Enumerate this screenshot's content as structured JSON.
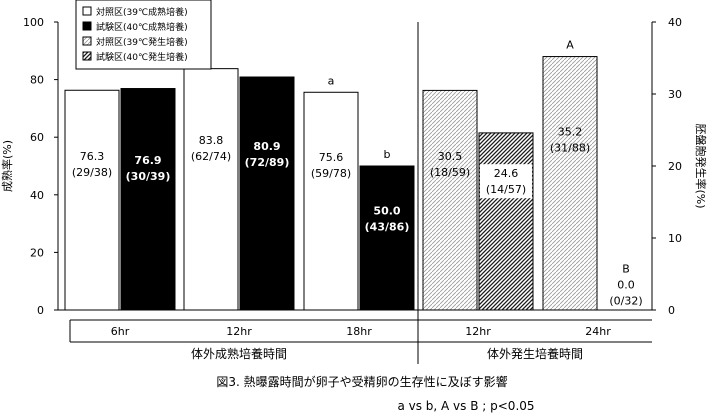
{
  "chart_data": {
    "type": "bar",
    "left_axis": {
      "label": "成熟率(%)",
      "ticks": [
        "0",
        "20",
        "40",
        "60",
        "80",
        "100"
      ],
      "ylim": [
        0,
        100
      ]
    },
    "right_axis": {
      "label": "胚盤胞発生率(%)",
      "ticks": [
        "0",
        "10",
        "20",
        "30",
        "40"
      ],
      "ylim": [
        0,
        40
      ]
    },
    "sections": [
      {
        "label": "体外成熟培養時間",
        "groups": [
          "6hr",
          "12hr",
          "18hr"
        ]
      },
      {
        "label": "体外発生培養時間",
        "groups": [
          "12hr",
          "24hr"
        ]
      }
    ],
    "legend": [
      {
        "name": "対照区(39℃成熟培養)",
        "pattern": "white"
      },
      {
        "name": "試験区(40℃成熟培養)",
        "pattern": "black"
      },
      {
        "name": "対照区(39℃発生培養)",
        "pattern": "dots"
      },
      {
        "name": "試験区(40℃発生培養)",
        "pattern": "hatch"
      }
    ],
    "series": [
      {
        "name": "対照区(39℃成熟培養)",
        "axis": "left",
        "pattern": "white",
        "points": [
          {
            "group": "6hr",
            "value": 76.3,
            "label": "76.3",
            "count": "(29/38)",
            "sig": ""
          },
          {
            "group": "12hr",
            "value": 83.8,
            "label": "83.8",
            "count": "(62/74)",
            "sig": ""
          },
          {
            "group": "18hr",
            "value": 75.6,
            "label": "75.6",
            "count": "(59/78)",
            "sig": "a"
          }
        ]
      },
      {
        "name": "試験区(40℃成熟培養)",
        "axis": "left",
        "pattern": "black",
        "points": [
          {
            "group": "6hr",
            "value": 76.9,
            "label": "76.9",
            "count": "(30/39)",
            "sig": ""
          },
          {
            "group": "12hr",
            "value": 80.9,
            "label": "80.9",
            "count": "(72/89)",
            "sig": ""
          },
          {
            "group": "18hr",
            "value": 50.0,
            "label": "50.0",
            "count": "(43/86)",
            "sig": "b"
          }
        ]
      },
      {
        "name": "対照区(39℃発生培養)",
        "axis": "right",
        "pattern": "dots",
        "points": [
          {
            "group": "12hr",
            "value": 30.5,
            "label": "30.5",
            "count": "(18/59)",
            "sig": ""
          },
          {
            "group": "24hr",
            "value": 35.2,
            "label": "35.2",
            "count": "(31/88)",
            "sig": "A"
          }
        ]
      },
      {
        "name": "試験区(40℃発生培養)",
        "axis": "right",
        "pattern": "hatch",
        "points": [
          {
            "group": "12hr",
            "value": 24.6,
            "label": "24.6",
            "count": "(14/57)",
            "sig": ""
          },
          {
            "group": "24hr",
            "value": 0.0,
            "label": "0.0",
            "count": "(0/32)",
            "sig": "B"
          }
        ]
      }
    ]
  },
  "caption": "図3. 熱曝露時間が卵子や受精卵の生存性に及ぼす影響",
  "note": "a vs b, A vs B ; p<0.05"
}
